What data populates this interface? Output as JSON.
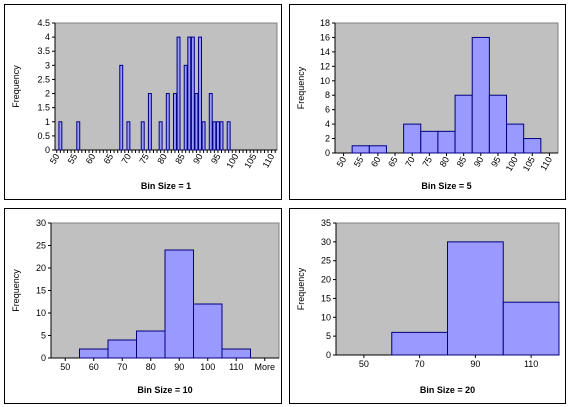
{
  "chart_data": [
    {
      "type": "bar",
      "xlabel": "Bin Size = 1",
      "ylabel": "Frequency",
      "ylim": [
        0,
        4.5
      ],
      "yticks": [
        "0",
        "0.5",
        "1",
        "1.5",
        "2",
        "2.5",
        "3",
        "3.5",
        "4",
        "4.5"
      ],
      "categories": [
        50,
        51,
        52,
        53,
        54,
        55,
        56,
        57,
        58,
        59,
        60,
        61,
        62,
        63,
        64,
        65,
        66,
        67,
        68,
        69,
        70,
        71,
        72,
        73,
        74,
        75,
        76,
        77,
        78,
        79,
        80,
        81,
        82,
        83,
        84,
        85,
        86,
        87,
        88,
        89,
        90,
        91,
        92,
        93,
        94,
        95,
        96,
        97,
        98,
        99,
        100,
        101,
        102,
        103,
        104,
        105,
        106,
        107,
        108,
        109,
        110,
        111
      ],
      "values": [
        0,
        1,
        0,
        0,
        0,
        0,
        1,
        0,
        0,
        0,
        0,
        0,
        0,
        0,
        0,
        0,
        0,
        0,
        3,
        0,
        1,
        0,
        0,
        0,
        1,
        0,
        2,
        0,
        0,
        1,
        0,
        2,
        0,
        2,
        4,
        0,
        3,
        4,
        4,
        2,
        4,
        1,
        0,
        2,
        1,
        1,
        1,
        0,
        1,
        0,
        0,
        0,
        0,
        0,
        0,
        0,
        0,
        0,
        0,
        0,
        0,
        0
      ],
      "xticks": [
        "50",
        "55",
        "60",
        "65",
        "70",
        "75",
        "80",
        "85",
        "90",
        "95",
        "100",
        "105",
        "110"
      ],
      "grid": false
    },
    {
      "type": "bar",
      "xlabel": "Bin Size = 5",
      "ylabel": "Frequency",
      "ylim": [
        0,
        18
      ],
      "yticks": [
        "0",
        "2",
        "4",
        "6",
        "8",
        "10",
        "12",
        "14",
        "16",
        "18"
      ],
      "categories": [
        "50",
        "55",
        "60",
        "65",
        "70",
        "75",
        "80",
        "85",
        "90",
        "95",
        "100",
        "105",
        "110"
      ],
      "values": [
        0,
        1,
        1,
        0,
        4,
        3,
        3,
        8,
        16,
        8,
        4,
        2,
        0
      ],
      "grid": false
    },
    {
      "type": "bar",
      "xlabel": "Bin Size = 10",
      "ylabel": "Frequency",
      "ylim": [
        0,
        30
      ],
      "yticks": [
        "0",
        "5",
        "10",
        "15",
        "20",
        "25",
        "30"
      ],
      "categories": [
        "50",
        "60",
        "70",
        "80",
        "90",
        "100",
        "110",
        "More"
      ],
      "values": [
        0,
        2,
        4,
        6,
        24,
        12,
        2,
        0
      ],
      "grid": false
    },
    {
      "type": "bar",
      "xlabel": "Bin Size = 20",
      "ylabel": "Frequency",
      "ylim": [
        0,
        35
      ],
      "yticks": [
        "0",
        "5",
        "10",
        "15",
        "20",
        "25",
        "30",
        "35"
      ],
      "categories": [
        "50",
        "70",
        "90",
        "110"
      ],
      "values": [
        0,
        6,
        30,
        14
      ],
      "grid": false
    }
  ],
  "colors": {
    "plot_bg": "#c0c0c0",
    "bar_fill": "#9999ff",
    "bar_stroke": "#000080"
  }
}
